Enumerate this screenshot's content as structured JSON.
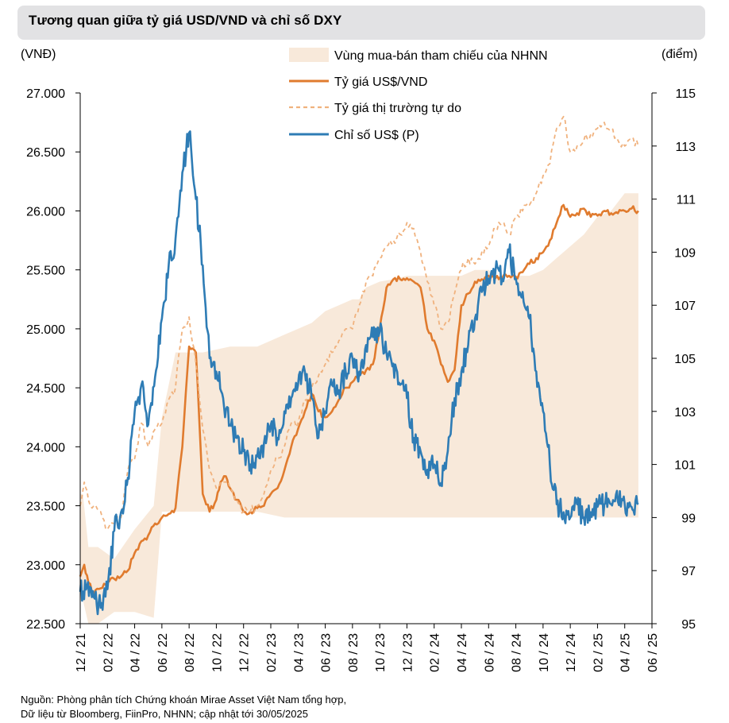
{
  "title": "Tương quan giữa tỷ giá USD/VND và chỉ số DXY",
  "left_unit": "(VNĐ)",
  "right_unit": "(điểm)",
  "source_lines": [
    "Nguồn: Phòng phân tích Chứng khoán Mirae Asset Việt Nam tổng hợp,",
    "Dữ liệu từ Bloomberg, FiinPro, NHNN; cập nhật tới 30/05/2025"
  ],
  "colors": {
    "band": "#f8e9da",
    "official": "#e07b2e",
    "free_market": "#f0b27e",
    "dxy": "#2e7cb5"
  },
  "chart_data": {
    "type": "line",
    "title": "Tương quan giữa tỷ giá USD/VND và chỉ số DXY",
    "x_start": "2021-12",
    "x_end": "2025-06",
    "x_tick_labels": [
      "12 / 21",
      "02 / 22",
      "04 / 22",
      "06 / 22",
      "08 / 22",
      "10 / 22",
      "12 / 22",
      "02 / 23",
      "04 / 23",
      "06 / 23",
      "08 / 23",
      "10 / 23",
      "12 / 23",
      "02 / 24",
      "04 / 24",
      "06 / 24",
      "08 / 24",
      "10 / 24",
      "12 / 24",
      "02 / 25",
      "04 / 25",
      "06 / 25"
    ],
    "y_left": {
      "label": "(VNĐ)",
      "range": [
        22500,
        27000
      ],
      "ticks": [
        "22.500",
        "23.000",
        "23.500",
        "24.000",
        "24.500",
        "25.000",
        "25.500",
        "26.000",
        "26.500",
        "27.000"
      ]
    },
    "y_right": {
      "label": "(điểm)",
      "range": [
        95,
        115
      ],
      "ticks": [
        "95",
        "97",
        "99",
        "101",
        "103",
        "105",
        "107",
        "109",
        "111",
        "113",
        "115"
      ]
    },
    "legend": [
      "Vùng mua-bán tham chiếu của NHNN",
      "Tỷ giá US$/VND",
      "Tỷ giá thị trường tự do",
      "Chỉ số US$ (P)"
    ],
    "band": {
      "name": "Vùng mua-bán tham chiếu của NHNN",
      "x": [
        0,
        0.2,
        0.6,
        0.6,
        1.3,
        1.3,
        2.5,
        2.5,
        4.0,
        4.0,
        5.4,
        5.4,
        6.0,
        6.0,
        7.0,
        7.0,
        9.0,
        11.0,
        13.0,
        15.0,
        17.0,
        18.0,
        19.0,
        20.0,
        20.5,
        21.0,
        22.0,
        23.0,
        24.0,
        25.0,
        26.0,
        27.0,
        28.0,
        29.0,
        30.0,
        31.0,
        32.0,
        33.0,
        34.0,
        35.0,
        35.5,
        36.0,
        37.0,
        38.0,
        39.0,
        40.0,
        40.5,
        41.0
      ],
      "upper": [
        23600,
        23600,
        23150,
        23150,
        23150,
        23150,
        23050,
        23050,
        23300,
        23300,
        23500,
        23500,
        24250,
        24250,
        24800,
        24800,
        24800,
        24850,
        24850,
        24950,
        25050,
        25150,
        25200,
        25250,
        25250,
        25350,
        25400,
        25420,
        25450,
        25450,
        25450,
        25450,
        25450,
        25500,
        25500,
        25400,
        25450,
        25450,
        25500,
        25600,
        25650,
        25700,
        25800,
        25950,
        26000,
        26150,
        26150,
        26150
      ],
      "lower": [
        22700,
        22700,
        22500,
        22500,
        22500,
        22500,
        22600,
        22600,
        22600,
        22600,
        22550,
        22550,
        23450,
        23450,
        23450,
        23450,
        23450,
        23450,
        23450,
        23400,
        23400,
        23400,
        23400,
        23400,
        23400,
        23400,
        23400,
        23400,
        23400,
        23400,
        23400,
        23400,
        23400,
        23400,
        23400,
        23400,
        23400,
        23400,
        23400,
        23400,
        23400,
        23400,
        23400,
        23400,
        23400,
        23400,
        23400,
        23400
      ]
    },
    "series": [
      {
        "name": "Tỷ giá US$/VND",
        "axis": "left",
        "x": [
          0,
          0.3,
          0.6,
          1.0,
          1.5,
          2.0,
          2.5,
          3.0,
          3.5,
          4.0,
          4.5,
          5.0,
          5.5,
          6.0,
          6.5,
          7.0,
          7.5,
          8.0,
          8.5,
          9.0,
          9.5,
          10.0,
          10.3,
          10.7,
          11.0,
          11.5,
          12.0,
          12.5,
          13.0,
          13.5,
          14.0,
          14.5,
          15.0,
          15.5,
          16.0,
          16.5,
          17.0,
          17.5,
          18.0,
          18.5,
          19.0,
          19.5,
          20.0,
          20.5,
          21.0,
          21.5,
          22.0,
          22.5,
          23.0,
          23.5,
          24.0,
          24.5,
          25.0,
          25.5,
          26.0,
          26.5,
          27.0,
          27.5,
          28.0,
          28.5,
          29.0,
          29.5,
          30.0,
          30.5,
          31.0,
          31.5,
          32.0,
          32.5,
          33.0,
          33.5,
          34.0,
          34.5,
          35.0,
          35.5,
          36.0,
          36.5,
          37.0,
          37.5,
          38.0,
          38.5,
          39.0,
          39.5,
          40.0,
          40.5,
          41.0
        ],
        "values": [
          22900,
          23000,
          22850,
          22750,
          22800,
          22850,
          22880,
          22900,
          22950,
          23100,
          23200,
          23250,
          23350,
          23400,
          23430,
          23480,
          24000,
          24850,
          24800,
          23600,
          23450,
          23550,
          23700,
          23750,
          23650,
          23550,
          23450,
          23450,
          23480,
          23500,
          23600,
          23650,
          23800,
          24000,
          24150,
          24300,
          24450,
          24300,
          24250,
          24300,
          24400,
          24500,
          24550,
          24600,
          24650,
          24700,
          25000,
          25350,
          25420,
          25420,
          25430,
          25400,
          25350,
          25000,
          24900,
          24700,
          24550,
          24650,
          25200,
          25300,
          25400,
          25420,
          25450,
          25430,
          25430,
          25450,
          25440,
          25480,
          25550,
          25600,
          25650,
          25750,
          25900,
          26050,
          25950,
          25980,
          26020,
          25950,
          25960,
          26000,
          25980,
          25980,
          26000,
          26020,
          26000
        ]
      },
      {
        "name": "Tỷ giá thị trường tự do",
        "axis": "left",
        "x": [
          0,
          0.3,
          0.6,
          1.0,
          1.5,
          2.0,
          2.5,
          3.0,
          3.5,
          4.0,
          4.5,
          5.0,
          5.5,
          6.0,
          6.5,
          7.0,
          7.5,
          8.0,
          8.5,
          9.0,
          9.5,
          10.0,
          10.3,
          10.7,
          11.0,
          11.5,
          12.0,
          12.5,
          13.0,
          13.5,
          14.0,
          14.5,
          15.0,
          15.5,
          16.0,
          16.5,
          17.0,
          17.5,
          18.0,
          18.5,
          19.0,
          19.5,
          20.0,
          20.5,
          21.0,
          21.5,
          22.0,
          22.5,
          23.0,
          23.5,
          24.0,
          24.5,
          25.0,
          25.5,
          26.0,
          26.5,
          27.0,
          27.5,
          28.0,
          28.5,
          29.0,
          29.5,
          30.0,
          30.5,
          31.0,
          31.5,
          32.0,
          32.5,
          33.0,
          33.5,
          34.0,
          34.5,
          35.0,
          35.5,
          36.0,
          36.5,
          37.0,
          37.5,
          38.0,
          38.5,
          39.0,
          39.5,
          40.0,
          40.5,
          41.0
        ],
        "values": [
          23500,
          23700,
          23550,
          23500,
          23450,
          23300,
          23350,
          23400,
          23800,
          23900,
          24200,
          24000,
          24150,
          24200,
          24400,
          24500,
          25000,
          25100,
          24700,
          24150,
          23800,
          23650,
          23700,
          23700,
          23650,
          23550,
          23450,
          23450,
          23500,
          23600,
          23800,
          23900,
          24000,
          24200,
          24200,
          24400,
          24500,
          24600,
          24700,
          24800,
          24900,
          25000,
          25000,
          25200,
          25400,
          25450,
          25600,
          25700,
          25750,
          25800,
          25900,
          25850,
          25650,
          25400,
          25200,
          25000,
          25050,
          25300,
          25500,
          25600,
          25550,
          25650,
          25700,
          25850,
          25900,
          25800,
          25950,
          26000,
          26050,
          26150,
          26300,
          26400,
          26700,
          26800,
          26500,
          26550,
          26600,
          26650,
          26700,
          26750,
          26700,
          26600,
          26550,
          26600,
          26550
        ]
      },
      {
        "name": "Chỉ số US$ (P)",
        "axis": "right",
        "x": [
          0,
          0.5,
          1.0,
          1.5,
          2.0,
          2.5,
          3.0,
          3.5,
          4.0,
          4.5,
          5.0,
          5.5,
          6.0,
          6.5,
          7.0,
          7.5,
          8.0,
          8.5,
          9.0,
          9.5,
          10.0,
          10.5,
          11.0,
          11.5,
          12.0,
          12.5,
          13.0,
          13.5,
          14.0,
          14.5,
          15.0,
          15.5,
          16.0,
          16.5,
          17.0,
          17.5,
          18.0,
          18.5,
          19.0,
          19.5,
          20.0,
          20.5,
          21.0,
          21.5,
          22.0,
          22.5,
          23.0,
          23.5,
          24.0,
          24.5,
          25.0,
          25.5,
          26.0,
          26.5,
          27.0,
          27.5,
          28.0,
          28.5,
          29.0,
          29.5,
          30.0,
          30.5,
          31.0,
          31.5,
          32.0,
          32.5,
          33.0,
          33.5,
          34.0,
          34.5,
          35.0,
          35.5,
          36.0,
          36.5,
          37.0,
          37.5,
          38.0,
          38.5,
          39.0,
          39.5,
          40.0,
          40.5,
          41.0
        ],
        "values": [
          96.2,
          96.4,
          96.0,
          95.6,
          96.3,
          98.5,
          99.2,
          100.5,
          103.0,
          104.0,
          102.5,
          104.3,
          106.5,
          108.5,
          109.5,
          112.0,
          113.5,
          111.0,
          108.5,
          105.0,
          104.5,
          103.5,
          102.5,
          102.0,
          101.5,
          101.0,
          101.3,
          101.8,
          102.5,
          102.0,
          103.0,
          103.5,
          104.0,
          104.5,
          103.5,
          102.0,
          103.0,
          104.0,
          103.8,
          104.5,
          105.0,
          104.5,
          105.5,
          105.8,
          106.0,
          105.2,
          104.8,
          104.0,
          103.5,
          102.0,
          101.5,
          100.8,
          101.0,
          100.3,
          101.5,
          103.5,
          104.5,
          105.5,
          106.5,
          107.5,
          108.0,
          108.3,
          108.0,
          109.0,
          108.0,
          107.5,
          106.5,
          104.5,
          103.0,
          101.0,
          99.5,
          99.2,
          99.0,
          99.5,
          99.0,
          99.2,
          99.4,
          99.5,
          99.5,
          99.6,
          99.5,
          99.4,
          99.5
        ]
      }
    ]
  }
}
